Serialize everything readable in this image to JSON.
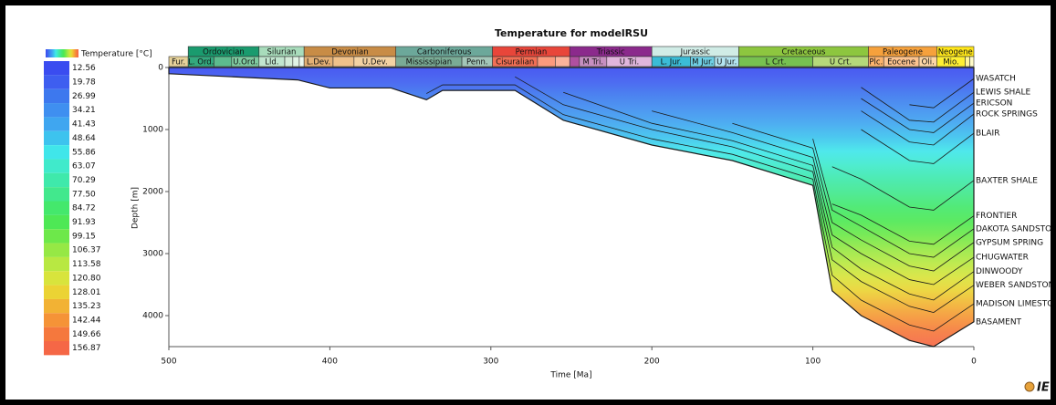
{
  "chart_data": {
    "type": "burial",
    "title": "Temperature for modelRSU",
    "xlabel": "Time [Ma]",
    "ylabel": "Depth [m]",
    "xlim": [
      500,
      0
    ],
    "ylim": [
      0,
      4500
    ],
    "xticks": [
      500,
      400,
      300,
      200,
      100,
      0
    ],
    "yticks": [
      0,
      1000,
      2000,
      3000,
      4000
    ],
    "line_color": "#1a1a1a",
    "logo_text": "IE",
    "legend": {
      "title": "Temperature [°C]",
      "labels": [
        12.56,
        19.78,
        26.99,
        34.21,
        41.43,
        48.64,
        55.86,
        63.07,
        70.29,
        {
          "value": 77.5,
          "label": "77.50"
        },
        84.72,
        91.93,
        99.15,
        106.37,
        113.58,
        {
          "value": 120.8,
          "label": "120.80"
        },
        128.01,
        135.23,
        142.44,
        149.66,
        156.87
      ],
      "colors": [
        "#3a4cf0",
        "#3e5ef0",
        "#3d78ee",
        "#3f8ff0",
        "#3fa6f0",
        "#3dc3ee",
        "#40e6ea",
        "#40eacb",
        "#3fe9ab",
        "#42e88d",
        "#44e86c",
        "#4ee855",
        "#6de84a",
        "#96e845",
        "#b8e842",
        "#d8e43c",
        "#ebd334",
        "#f2b234",
        "#f59337",
        "#f5783d",
        "#f56746"
      ]
    },
    "periods": [
      {
        "name": "Ordovician",
        "start": 488,
        "end": 444,
        "color": "#1a9b6e"
      },
      {
        "name": "Silurian",
        "start": 444,
        "end": 416,
        "color": "#a8dcbb"
      },
      {
        "name": "Devonian",
        "start": 416,
        "end": 359,
        "color": "#c88c46"
      },
      {
        "name": "Carboniferous",
        "start": 359,
        "end": 299,
        "color": "#6ca89a"
      },
      {
        "name": "Permian",
        "start": 299,
        "end": 251,
        "color": "#e8463a"
      },
      {
        "name": "Triassic",
        "start": 251,
        "end": 200,
        "color": "#8b2a8c"
      },
      {
        "name": "Jurassic",
        "start": 200,
        "end": 146,
        "color": "#d0ece6"
      },
      {
        "name": "Cretaceous",
        "start": 146,
        "end": 65.5,
        "color": "#8dc63f"
      },
      {
        "name": "Paleogene",
        "start": 65.5,
        "end": 23,
        "color": "#f6a13c"
      },
      {
        "name": "Neogene",
        "start": 23,
        "end": 0,
        "color": "#ffe619"
      }
    ],
    "epochs": [
      {
        "name": "Fur.",
        "start": 500,
        "end": 488,
        "color": "#e6d29a"
      },
      {
        "name": "L. Ord.",
        "start": 488,
        "end": 472,
        "color": "#33a97e"
      },
      {
        "name": null,
        "start": 472,
        "end": 461,
        "color": "#5dbb8e"
      },
      {
        "name": "U.Ord.",
        "start": 461,
        "end": 444,
        "color": "#7fcaa0"
      },
      {
        "name": "Lld.",
        "start": 444,
        "end": 428,
        "color": "#c2e6cf"
      },
      {
        "name": null,
        "start": 428,
        "end": 423,
        "color": "#d4ecd9"
      },
      {
        "name": null,
        "start": 423,
        "end": 419,
        "color": "#e1f3e5"
      },
      {
        "name": null,
        "start": 419,
        "end": 416,
        "color": "#ecf8ee"
      },
      {
        "name": "L.Dev.",
        "start": 416,
        "end": 398,
        "color": "#e5b176"
      },
      {
        "name": null,
        "start": 398,
        "end": 385,
        "color": "#efc18a"
      },
      {
        "name": "U.Dev.",
        "start": 385,
        "end": 359,
        "color": "#f3d2a3"
      },
      {
        "name": "Mississipian",
        "start": 359,
        "end": 318,
        "color": "#7aab95"
      },
      {
        "name": "Penn.",
        "start": 318,
        "end": 299,
        "color": "#a3c6b8"
      },
      {
        "name": "Cisuralian",
        "start": 299,
        "end": 271,
        "color": "#f26f55"
      },
      {
        "name": null,
        "start": 271,
        "end": 260,
        "color": "#fb9a7d"
      },
      {
        "name": null,
        "start": 260,
        "end": 251,
        "color": "#fbb39b"
      },
      {
        "name": null,
        "start": 251,
        "end": 245,
        "color": "#b050a0"
      },
      {
        "name": "M Tri.",
        "start": 245,
        "end": 228,
        "color": "#c68fc0"
      },
      {
        "name": "U Tri.",
        "start": 228,
        "end": 200,
        "color": "#e0b6dc"
      },
      {
        "name": "L. Jur.",
        "start": 200,
        "end": 176,
        "color": "#3bbcd6"
      },
      {
        "name": "M Jur.",
        "start": 176,
        "end": 161,
        "color": "#6fd0e5"
      },
      {
        "name": "U Jur.",
        "start": 161,
        "end": 146,
        "color": "#b3e4f0"
      },
      {
        "name": "L Crt.",
        "start": 146,
        "end": 100,
        "color": "#77c150"
      },
      {
        "name": "U Crt.",
        "start": 100,
        "end": 65.5,
        "color": "#b5d97a"
      },
      {
        "name": "Plc.",
        "start": 65.5,
        "end": 56,
        "color": "#fdb46c"
      },
      {
        "name": "Eocene",
        "start": 56,
        "end": 34,
        "color": "#fcc490"
      },
      {
        "name": "Oli.",
        "start": 34,
        "end": 23,
        "color": "#fdd6a6"
      },
      {
        "name": "Mio.",
        "start": 23,
        "end": 5.3,
        "color": "#fff033"
      },
      {
        "name": null,
        "start": 5.3,
        "end": 2.6,
        "color": "#fff59a"
      },
      {
        "name": null,
        "start": 2.6,
        "end": 0,
        "color": "#fffbc8"
      }
    ],
    "x": [
      500,
      420,
      400,
      362,
      340,
      330,
      285,
      255,
      200,
      150,
      100,
      88,
      70,
      40,
      25,
      0
    ],
    "series": [
      {
        "name": "BASAMENT",
        "values": [
          100,
          200,
          330,
          330,
          520,
          370,
          370,
          850,
          1250,
          1500,
          1900,
          3600,
          4000,
          4400,
          4500,
          4100
        ]
      },
      {
        "name": "MADISON LIMESTONE",
        "values": [
          null,
          null,
          null,
          null,
          420,
          280,
          280,
          760,
          1150,
          1400,
          1800,
          3350,
          3750,
          4150,
          4250,
          3810
        ]
      },
      {
        "name": "WEBER SANDSTONE",
        "values": [
          null,
          null,
          null,
          null,
          null,
          null,
          150,
          600,
          1000,
          1280,
          1680,
          3100,
          3450,
          3850,
          3950,
          3510
        ]
      },
      {
        "name": "DINWOODY",
        "values": [
          null,
          null,
          null,
          null,
          null,
          null,
          null,
          400,
          900,
          1180,
          1580,
          2900,
          3250,
          3650,
          3750,
          3290
        ]
      },
      {
        "name": "CHUGWATER",
        "values": [
          null,
          null,
          null,
          null,
          null,
          null,
          null,
          null,
          700,
          1050,
          1450,
          2700,
          3000,
          3420,
          3500,
          3060
        ]
      },
      {
        "name": "GYPSUM SPRING",
        "values": [
          null,
          null,
          null,
          null,
          null,
          null,
          null,
          null,
          null,
          900,
          1300,
          2500,
          2780,
          3200,
          3280,
          2820
        ]
      },
      {
        "name": "DAKOTA SANDSTONE",
        "values": [
          null,
          null,
          null,
          null,
          null,
          null,
          null,
          null,
          null,
          null,
          1150,
          2300,
          2560,
          3000,
          3060,
          2600
        ]
      },
      {
        "name": "FRONTIER",
        "values": [
          null,
          null,
          null,
          null,
          null,
          null,
          null,
          null,
          null,
          null,
          null,
          2200,
          2380,
          2800,
          2850,
          2390
        ]
      },
      {
        "name": "BAXTER SHALE",
        "values": [
          null,
          null,
          null,
          null,
          null,
          null,
          null,
          null,
          null,
          null,
          null,
          1600,
          1800,
          2250,
          2300,
          1820
        ]
      },
      {
        "name": "BLAIR",
        "values": [
          null,
          null,
          null,
          null,
          null,
          null,
          null,
          null,
          null,
          null,
          null,
          null,
          1000,
          1500,
          1550,
          1060
        ]
      },
      {
        "name": "ROCK SPRINGS",
        "values": [
          null,
          null,
          null,
          null,
          null,
          null,
          null,
          null,
          null,
          null,
          null,
          null,
          700,
          1200,
          1250,
          750
        ]
      },
      {
        "name": "ERICSON",
        "values": [
          null,
          null,
          null,
          null,
          null,
          null,
          null,
          null,
          null,
          null,
          null,
          null,
          500,
          1000,
          1050,
          575
        ]
      },
      {
        "name": "LEWIS SHALE",
        "values": [
          null,
          null,
          null,
          null,
          null,
          null,
          null,
          null,
          null,
          null,
          null,
          null,
          320,
          850,
          880,
          400
        ]
      },
      {
        "name": "WASATCH",
        "values": [
          null,
          null,
          null,
          null,
          null,
          null,
          null,
          null,
          null,
          null,
          null,
          null,
          null,
          600,
          650,
          180
        ]
      }
    ]
  }
}
